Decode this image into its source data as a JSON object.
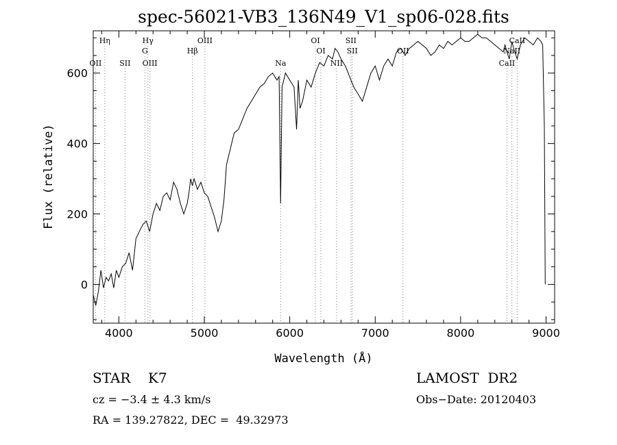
{
  "chart_data": {
    "type": "line",
    "title": "spec-56021-VB3_136N49_V1_sp06-028.fits",
    "xlabel": "Wavelength (Å)",
    "ylabel": "Flux (relative)",
    "xlim": [
      3700,
      9100
    ],
    "ylim": [
      -110,
      720
    ],
    "xticks": [
      4000,
      5000,
      6000,
      7000,
      8000,
      9000
    ],
    "xtick_labels": [
      "4000",
      "5000",
      "6000",
      "7000",
      "8000",
      "9000"
    ],
    "yticks": [
      0,
      200,
      400,
      600
    ],
    "ytick_labels": [
      "0",
      "200",
      "400",
      "600"
    ],
    "grid": false,
    "series": [
      {
        "x": [
          3700,
          3730,
          3760,
          3790,
          3820,
          3850,
          3880,
          3910,
          3940,
          3970,
          4000,
          4040,
          4080,
          4120,
          4160,
          4200,
          4240,
          4280,
          4320,
          4360,
          4400,
          4440,
          4480,
          4520,
          4560,
          4600,
          4640,
          4680,
          4720,
          4760,
          4800,
          4820,
          4840,
          4860,
          4880,
          4920,
          4960,
          5000,
          5040,
          5080,
          5120,
          5160,
          5200,
          5230,
          5260,
          5300,
          5350,
          5400,
          5450,
          5500,
          5550,
          5600,
          5650,
          5700,
          5750,
          5800,
          5850,
          5875,
          5893,
          5910,
          5950,
          6000,
          6050,
          6080,
          6100,
          6120,
          6150,
          6200,
          6250,
          6300,
          6350,
          6400,
          6450,
          6500,
          6530,
          6563,
          6600,
          6650,
          6700,
          6750,
          6800,
          6850,
          6900,
          6950,
          7000,
          7050,
          7100,
          7150,
          7200,
          7250,
          7300,
          7350,
          7400,
          7450,
          7500,
          7550,
          7600,
          7650,
          7700,
          7750,
          7800,
          7850,
          7900,
          7950,
          8000,
          8050,
          8100,
          8150,
          8200,
          8250,
          8300,
          8350,
          8400,
          8450,
          8498,
          8520,
          8542,
          8570,
          8600,
          8620,
          8662,
          8700,
          8750,
          8800,
          8850,
          8900,
          8940,
          8960,
          8980,
          8990
        ],
        "y": [
          -30,
          -60,
          -20,
          40,
          -10,
          20,
          10,
          30,
          -10,
          40,
          20,
          50,
          60,
          90,
          40,
          130,
          150,
          170,
          180,
          150,
          200,
          230,
          210,
          250,
          260,
          240,
          290,
          270,
          230,
          200,
          230,
          260,
          300,
          280,
          300,
          270,
          290,
          260,
          250,
          220,
          190,
          150,
          180,
          240,
          340,
          380,
          430,
          440,
          470,
          500,
          520,
          540,
          560,
          570,
          590,
          600,
          580,
          590,
          230,
          560,
          600,
          580,
          560,
          440,
          580,
          500,
          520,
          580,
          560,
          600,
          630,
          620,
          650,
          640,
          670,
          660,
          640,
          620,
          590,
          560,
          540,
          520,
          560,
          600,
          620,
          580,
          620,
          640,
          620,
          660,
          670,
          650,
          670,
          680,
          690,
          680,
          670,
          650,
          660,
          680,
          670,
          690,
          680,
          690,
          700,
          690,
          690,
          700,
          710,
          700,
          700,
          690,
          680,
          670,
          660,
          680,
          660,
          640,
          690,
          670,
          640,
          680,
          700,
          690,
          680,
          700,
          690,
          680,
          450,
          0
        ]
      }
    ],
    "lines": [
      {
        "name": "Hη",
        "x": 3835,
        "row": "top"
      },
      {
        "name": "OII",
        "x": 3727,
        "row": "low"
      },
      {
        "name": "SII",
        "x": 4072,
        "row": "low"
      },
      {
        "name": "Hγ",
        "x": 4340,
        "row": "top"
      },
      {
        "name": "G",
        "x": 4305,
        "row": "mid"
      },
      {
        "name": "OIII",
        "x": 4363,
        "row": "low"
      },
      {
        "name": "OIII",
        "x": 5007,
        "row": "top"
      },
      {
        "name": "Hβ",
        "x": 4861,
        "row": "mid"
      },
      {
        "name": "Na",
        "x": 5893,
        "row": "low"
      },
      {
        "name": "OI",
        "x": 6300,
        "row": "top"
      },
      {
        "name": "OI",
        "x": 6364,
        "row": "mid"
      },
      {
        "name": "NII",
        "x": 6548,
        "row": "low"
      },
      {
        "name": "SII",
        "x": 6716,
        "row": "top"
      },
      {
        "name": "SII",
        "x": 6731,
        "row": "mid"
      },
      {
        "name": "OII",
        "x": 7325,
        "row": "mid"
      },
      {
        "name": "CaII",
        "x": 8662,
        "row": "top"
      },
      {
        "name": "NaII",
        "x": 8600,
        "row": "mid"
      },
      {
        "name": "CaII",
        "x": 8542,
        "row": "low"
      }
    ]
  },
  "info": {
    "obj_class": "STAR    K7",
    "survey": "LAMOST  DR2",
    "cz": "cz = −3.4 ± 4.3 km/s",
    "obs_date": "Obs−Date: 20120403",
    "radec": "RA = 139.27822, DEC =  49.32973"
  }
}
